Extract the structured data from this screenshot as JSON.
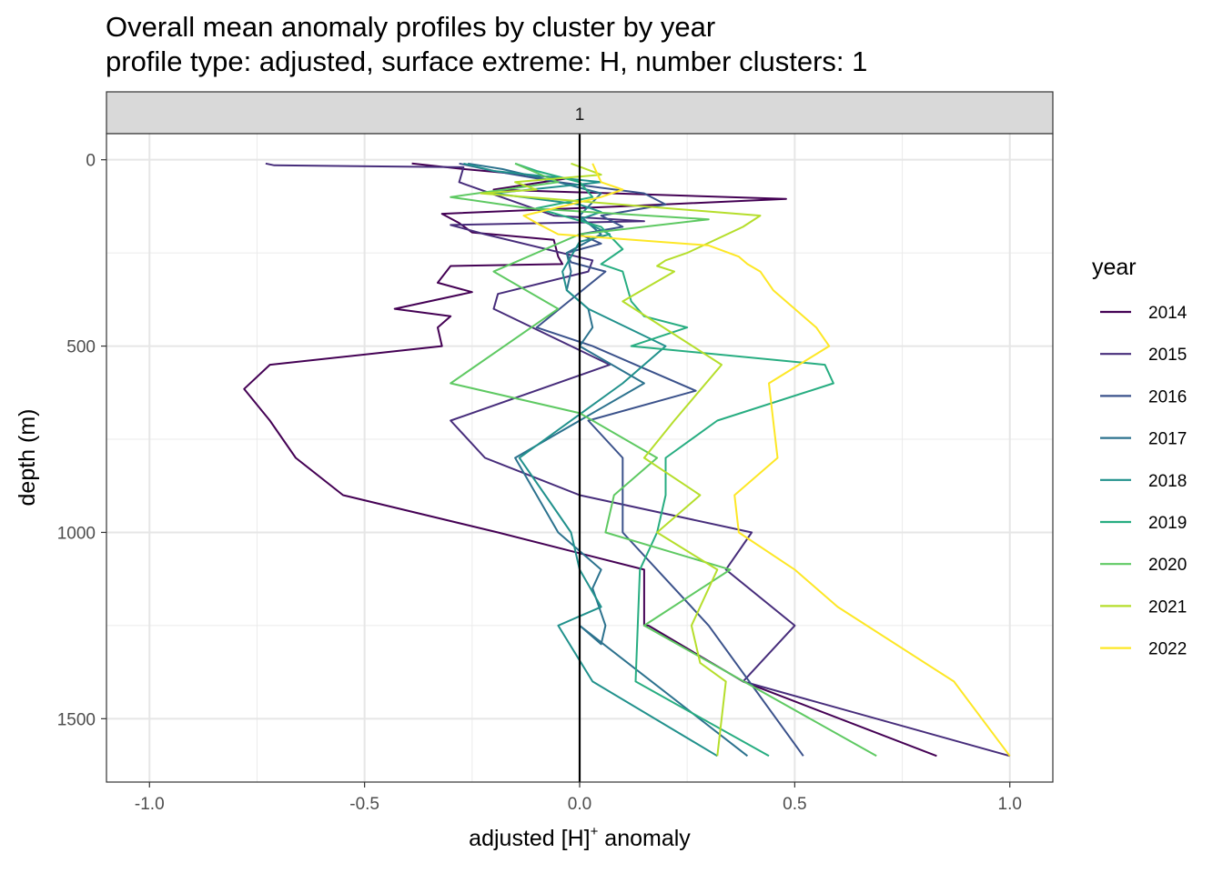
{
  "chart_data": {
    "type": "line",
    "title": "Overall mean anomaly profiles by cluster by year",
    "subtitle": "profile type: adjusted, surface extreme: H, number clusters: 1",
    "facet_label": "1",
    "xlabel": "adjusted [H]",
    "xlabel_sup": "+",
    "xlabel_suffix": " anomaly",
    "ylabel": "depth (m)",
    "xlim": [
      -1.1,
      1.1
    ],
    "ylim": [
      1670,
      -70
    ],
    "y_reversed": true,
    "x_ticks": [
      -1.0,
      -0.5,
      0.0,
      0.5,
      1.0
    ],
    "x_tick_labels": [
      "-1.0",
      "-0.5",
      "0.0",
      "0.5",
      "1.0"
    ],
    "y_ticks": [
      0,
      500,
      1000,
      1500
    ],
    "y_tick_labels": [
      "0",
      "500",
      "1000",
      "1500"
    ],
    "zero_line_x": 0,
    "grid": true,
    "legend_title": "year",
    "legend_position": "right",
    "series": [
      {
        "name": "2014",
        "color": "#440154",
        "x": [
          -0.39,
          -0.27,
          -0.03,
          -0.2,
          0.48,
          0.1,
          -0.32,
          -0.28,
          -0.25,
          -0.06,
          -0.05,
          -0.04,
          -0.3,
          -0.33,
          -0.25,
          -0.43,
          -0.3,
          -0.33,
          -0.32,
          -0.72,
          -0.78,
          -0.72,
          -0.66,
          -0.55,
          -0.19,
          0.15,
          0.15,
          0.16,
          0.38,
          0.83
        ],
        "y": [
          10,
          25,
          50,
          80,
          105,
          125,
          145,
          170,
          195,
          215,
          260,
          280,
          285,
          330,
          355,
          400,
          420,
          450,
          500,
          550,
          615,
          700,
          800,
          900,
          1000,
          1100,
          1250,
          1250,
          1400,
          1600
        ]
      },
      {
        "name": "2015",
        "color": "#472D7B",
        "x": [
          -0.73,
          -0.71,
          -0.27,
          -0.28,
          -0.06,
          0.15,
          -0.3,
          -0.22,
          0.03,
          0.02,
          -0.19,
          -0.2,
          0.07,
          -0.3,
          -0.22,
          0.0,
          0.4,
          0.34,
          0.5,
          0.38,
          1.0
        ],
        "y": [
          10,
          15,
          20,
          60,
          150,
          165,
          175,
          200,
          270,
          300,
          360,
          400,
          550,
          700,
          800,
          900,
          1000,
          1100,
          1250,
          1400,
          1600
        ]
      },
      {
        "name": "2016",
        "color": "#3B528B",
        "x": [
          -0.28,
          -0.2,
          -0.05,
          0.15,
          0.2,
          0.05,
          0.1,
          0.0,
          0.05,
          -0.03,
          -0.02,
          0.06,
          -0.1,
          0.03,
          0.15,
          0.27,
          0.02,
          0.1,
          0.1,
          0.3,
          0.52
        ],
        "y": [
          10,
          30,
          60,
          90,
          120,
          150,
          180,
          200,
          225,
          250,
          275,
          300,
          450,
          500,
          560,
          620,
          700,
          800,
          1000,
          1250,
          1600
        ]
      },
      {
        "name": "2017",
        "color": "#2C728E",
        "x": [
          -0.26,
          -0.18,
          -0.05,
          0.05,
          0.0,
          0.05,
          -0.03,
          -0.02,
          -0.03,
          0.02,
          0.03,
          0.0,
          0.15,
          -0.15,
          -0.05,
          0.05,
          0.03,
          0.06,
          0.05,
          0.0,
          0.39
        ],
        "y": [
          10,
          25,
          60,
          90,
          150,
          200,
          250,
          300,
          350,
          400,
          450,
          500,
          600,
          800,
          1000,
          1100,
          1150,
          1250,
          1300,
          1250,
          1600
        ]
      },
      {
        "name": "2018",
        "color": "#21918C",
        "x": [
          -0.27,
          -0.2,
          0.05,
          -0.2,
          0.0,
          0.05,
          0.0,
          0.07,
          0.0,
          -0.02,
          -0.04,
          -0.03,
          0.02,
          0.2,
          0.1,
          -0.14,
          -0.08,
          -0.02,
          0.0,
          0.05,
          -0.05,
          0.03,
          0.32
        ],
        "y": [
          10,
          30,
          60,
          90,
          120,
          140,
          160,
          200,
          220,
          260,
          300,
          350,
          400,
          500,
          600,
          800,
          900,
          1000,
          1100,
          1200,
          1250,
          1400,
          1600
        ]
      },
      {
        "name": "2019",
        "color": "#27AD81",
        "x": [
          -0.15,
          -0.1,
          0.0,
          0.03,
          -0.1,
          0.05,
          0.1,
          0.05,
          0.1,
          0.12,
          0.15,
          0.25,
          0.12,
          0.57,
          0.59,
          0.32,
          0.2,
          0.2,
          0.18,
          0.14,
          0.13,
          0.44
        ],
        "y": [
          10,
          30,
          60,
          100,
          130,
          180,
          240,
          280,
          300,
          380,
          420,
          450,
          500,
          550,
          600,
          700,
          800,
          900,
          1000,
          1100,
          1400,
          1600
        ]
      },
      {
        "name": "2020",
        "color": "#5EC962",
        "x": [
          -0.15,
          -0.05,
          -0.3,
          -0.12,
          0.3,
          0.0,
          -0.2,
          -0.05,
          -0.3,
          0.0,
          0.18,
          0.08,
          0.06,
          0.35,
          0.15,
          0.69
        ],
        "y": [
          10,
          60,
          100,
          130,
          160,
          200,
          300,
          400,
          600,
          680,
          800,
          900,
          1000,
          1100,
          1250,
          1600
        ]
      },
      {
        "name": "2021",
        "color": "#B5DE2B",
        "x": [
          -0.02,
          0.05,
          -0.15,
          -0.1,
          -0.23,
          0.42,
          0.38,
          0.25,
          0.2,
          0.18,
          0.22,
          0.1,
          0.33,
          0.22,
          0.15,
          0.28,
          0.18,
          0.32,
          0.26,
          0.28,
          0.34,
          0.32
        ],
        "y": [
          10,
          40,
          60,
          80,
          90,
          150,
          180,
          250,
          270,
          285,
          300,
          380,
          550,
          700,
          800,
          900,
          1000,
          1100,
          1250,
          1350,
          1400,
          1600
        ]
      },
      {
        "name": "2022",
        "color": "#FDE725",
        "x": [
          0.03,
          0.05,
          0.1,
          0.05,
          -0.13,
          -0.1,
          -0.05,
          0.3,
          0.37,
          0.39,
          0.42,
          0.45,
          0.55,
          0.58,
          0.44,
          0.45,
          0.46,
          0.36,
          0.37,
          0.5,
          0.6,
          0.87,
          1.0
        ],
        "y": [
          10,
          60,
          80,
          100,
          150,
          170,
          200,
          230,
          260,
          280,
          300,
          350,
          450,
          500,
          600,
          700,
          800,
          900,
          1000,
          1100,
          1200,
          1400,
          1600
        ]
      }
    ]
  }
}
